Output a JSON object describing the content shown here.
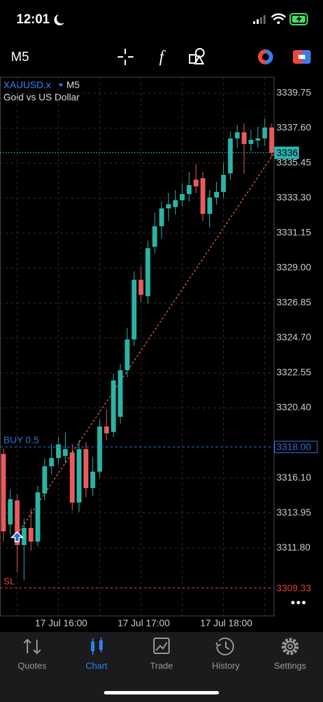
{
  "status_bar": {
    "time": "12:01"
  },
  "toolbar": {
    "timeframe": "M5"
  },
  "chart_data": {
    "type": "candlestick",
    "symbol": "XAUUSD.x",
    "timeframe": "M5",
    "subtitle": "Gold vs US Dollar",
    "categories": [
      null,
      null,
      null,
      null,
      null,
      null,
      null,
      null,
      "17 Jul 16:00",
      null,
      null,
      null,
      null,
      null,
      null,
      null,
      null,
      null,
      null,
      null,
      "17 Jul 17:00",
      null,
      null,
      null,
      null,
      null,
      null,
      null,
      null,
      null,
      null,
      null,
      "17 Jul 18:00",
      null,
      null,
      null,
      null,
      null,
      null,
      null
    ],
    "open": [
      3317.57,
      3313.23,
      3314.71,
      3311.97,
      3313.02,
      3312.18,
      3315.13,
      3316.81,
      3317.32,
      3317.45,
      3317.66,
      3314.58,
      3317.87,
      3315.47,
      3316.48,
      3319.26,
      3318.92,
      3319.85,
      3322.72,
      3324.61,
      3328.28,
      3327.27,
      3330.31,
      3331.57,
      3332.67,
      3332.75,
      3333.17,
      3333.55,
      3334.44,
      3334.52,
      3332.33,
      3333.34,
      3333.68,
      3334.82,
      3336.97,
      3337.35,
      3336.63,
      3336.84,
      3336.97,
      3337.64
    ],
    "high": [
      3317.9,
      3315.4,
      3315.1,
      3313.6,
      3314.2,
      3315.6,
      3317.3,
      3318.2,
      3318.6,
      3318.9,
      3318.2,
      3318.4,
      3318.3,
      3317.4,
      3319.7,
      3320.3,
      3322.5,
      3323.1,
      3325.3,
      3328.8,
      3329.1,
      3330.7,
      3332.4,
      3333.1,
      3333.6,
      3333.8,
      3334.2,
      3334.9,
      3335.4,
      3334.9,
      3333.8,
      3334.3,
      3335.5,
      3337.4,
      3337.8,
      3337.9,
      3337.5,
      3337.7,
      3338.2,
      3337.9
    ],
    "low": [
      3312.2,
      3312.6,
      3310.3,
      3309.8,
      3311.6,
      3311.9,
      3314.7,
      3316.3,
      3316.9,
      3317.0,
      3314.1,
      3314.0,
      3314.9,
      3315.0,
      3316.1,
      3318.4,
      3318.6,
      3319.4,
      3322.3,
      3324.2,
      3326.9,
      3326.8,
      3329.9,
      3330.8,
      3331.9,
      3332.3,
      3332.8,
      3333.1,
      3333.6,
      3331.9,
      3331.5,
      3332.9,
      3333.3,
      3334.4,
      3336.4,
      3334.8,
      3336.2,
      3336.4,
      3336.5,
      3335.8
    ],
    "close": [
      3312.81,
      3314.79,
      3311.97,
      3313.02,
      3312.18,
      3315.21,
      3316.81,
      3317.32,
      3318.16,
      3317.87,
      3314.58,
      3317.87,
      3315.47,
      3316.48,
      3319.26,
      3318.84,
      3322.09,
      3322.72,
      3324.61,
      3328.28,
      3327.35,
      3330.22,
      3331.57,
      3332.67,
      3332.92,
      3333.17,
      3333.55,
      3334.1,
      3334.02,
      3332.33,
      3333.34,
      3333.68,
      3334.73,
      3336.97,
      3337.35,
      3336.63,
      3336.88,
      3336.97,
      3337.64,
      3336.09
    ],
    "up_color": "#2bb3a5",
    "down_color": "#ea5a5a",
    "ylim": [
      3307.63,
      3340.76
    ],
    "yticks": [
      3339.75,
      {
        "value": 3337.6,
        "label": "3337.60"
      },
      3335.45,
      {
        "value": 3333.3,
        "label": "3333.30"
      },
      3331.15,
      {
        "value": 3329,
        "label": "3329.00"
      },
      3326.85,
      {
        "value": 3324.7,
        "label": "3324.70"
      },
      3322.55,
      {
        "value": 3320.4,
        "label": "3320.40"
      },
      {
        "value": 3316.1,
        "label": "3316.10"
      },
      3313.95,
      {
        "value": 3311.8,
        "label": "3311.80"
      }
    ],
    "grid": true,
    "price_lines": [
      {
        "name": "BUY 0.5",
        "value": 3318,
        "label": "3318.00",
        "color": "#2f6fd6"
      },
      {
        "name": "SL",
        "value": 3309.33,
        "label": "3309.33",
        "color": "#d9413c"
      },
      {
        "value": 3336.09,
        "label": "3336.09",
        "color": "#2ab3b3"
      }
    ]
  },
  "tabs": [
    "Quotes",
    "Chart",
    "Trade",
    "History",
    "Settings"
  ]
}
